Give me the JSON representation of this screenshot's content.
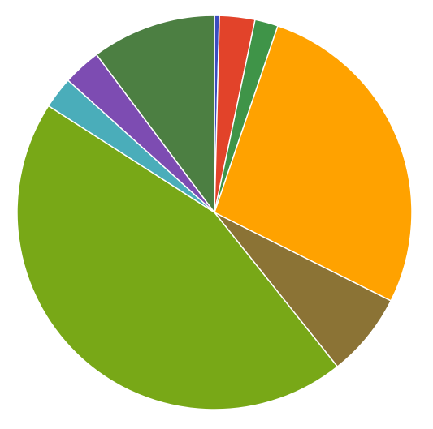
{
  "chart_data": {
    "type": "pie",
    "title": "",
    "legend": "none",
    "start_angle_deg": 0,
    "direction": "clockwise",
    "slices": [
      {
        "value": 0.4,
        "color": "#3B4CC0"
      },
      {
        "value": 2.9,
        "color": "#E2432A"
      },
      {
        "value": 1.9,
        "color": "#3F9448"
      },
      {
        "value": 27.2,
        "color": "#FFA200"
      },
      {
        "value": 6.9,
        "color": "#8B7335"
      },
      {
        "value": 44.8,
        "color": "#78A817"
      },
      {
        "value": 2.6,
        "color": "#4AADBA"
      },
      {
        "value": 3.1,
        "color": "#7D4CB2"
      },
      {
        "value": 10.2,
        "color": "#4C7F42"
      }
    ]
  }
}
